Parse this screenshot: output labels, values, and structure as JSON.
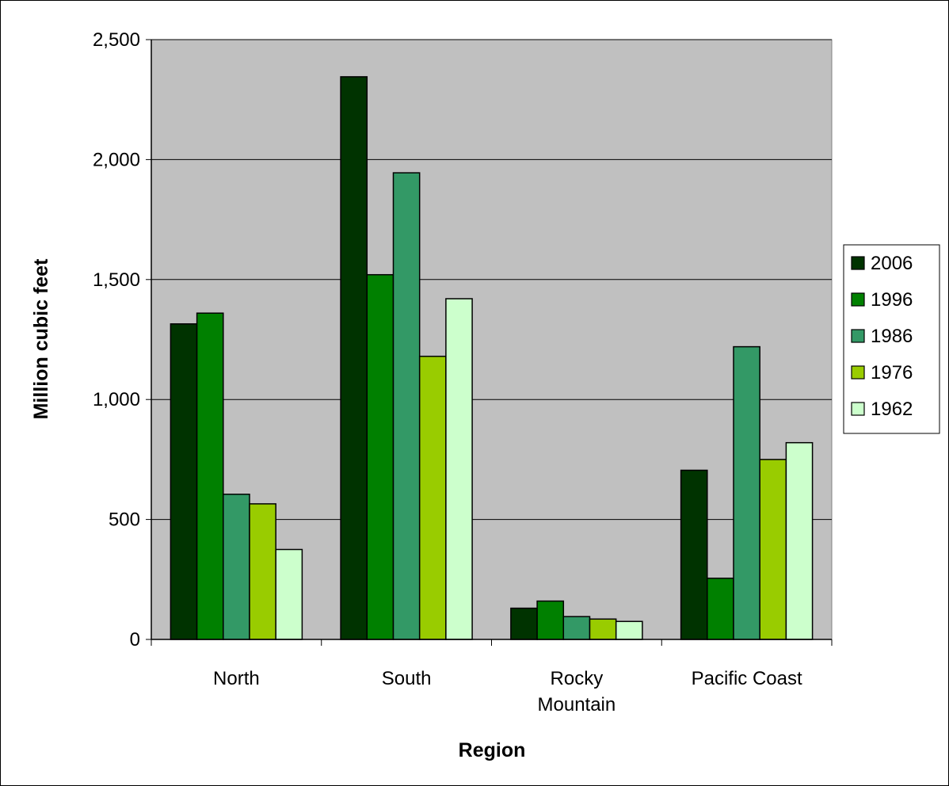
{
  "chart_data": {
    "type": "bar",
    "title": "",
    "xlabel": "Region",
    "ylabel": "Million cubic feet",
    "ylim": [
      0,
      2500
    ],
    "yticks": [
      0,
      500,
      1000,
      1500,
      2000,
      2500
    ],
    "ytick_labels": [
      "0",
      "500",
      "1,000",
      "1,500",
      "2,000",
      "2,500"
    ],
    "categories": [
      [
        "North"
      ],
      [
        "South"
      ],
      [
        "Rocky",
        "Mountain"
      ],
      [
        "Pacific Coast"
      ]
    ],
    "grid": true,
    "legend_position": "right",
    "plot_background": "#c0c0c0",
    "series": [
      {
        "name": "2006",
        "color": "#003300",
        "values": [
          1315,
          2345,
          130,
          705
        ]
      },
      {
        "name": "1996",
        "color": "#008000",
        "values": [
          1360,
          1520,
          160,
          255
        ]
      },
      {
        "name": "1986",
        "color": "#339966",
        "values": [
          605,
          1945,
          95,
          1220
        ]
      },
      {
        "name": "1976",
        "color": "#99cc00",
        "values": [
          565,
          1180,
          85,
          750
        ]
      },
      {
        "name": "1962",
        "color": "#ccffcc",
        "values": [
          375,
          1420,
          75,
          820
        ]
      }
    ]
  }
}
